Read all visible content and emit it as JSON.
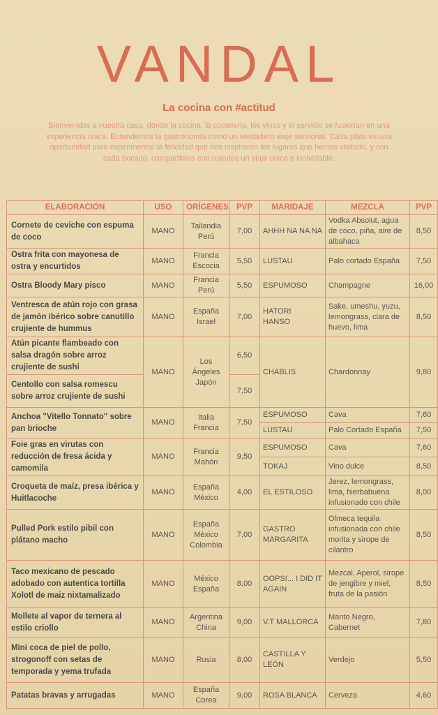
{
  "header": {
    "logo": "VANDAL",
    "tagline": "La cocina con #actitud",
    "intro": "Bienvenidos a nuestra casa, donde la cocina, la coctelería, los vinos y el servicio se fusionan en una experiencia única. Entendemos la gastronomía como un verdadero viaje sensorial. Cada plato es una oportunidad para experimentar la felicidad que nos inspiraron los lugares que hemos visitado, y con cada bocado, compartimos con ustedes un viaje único e inolvidable."
  },
  "colors": {
    "accent": "#d86c55",
    "background": "#ead9b2",
    "border": "#d9937a"
  },
  "table": {
    "columns": [
      "ELABORACIÓN",
      "USO",
      "ORÍGENES",
      "PVP",
      "MARIDAJE",
      "MEZCLA",
      "PVP"
    ],
    "rows": [
      [
        {
          "col": "dish",
          "text": "Cornete de ceviche con espuma de coco"
        },
        {
          "col": "uso",
          "text": "MANO"
        },
        {
          "col": "orig",
          "text": "Tailandia\nPerú"
        },
        {
          "col": "pvp",
          "text": "7,00"
        },
        {
          "col": "mar",
          "text": "AHHH NA NA NA"
        },
        {
          "col": "mez",
          "text": "Vodka Absolut, agua de coco, piña, aire de albahaca"
        },
        {
          "col": "pvp2",
          "text": "8,50"
        }
      ],
      [
        {
          "col": "dish",
          "text": "Ostra frita con mayonesa de ostra y encurtidos"
        },
        {
          "col": "uso",
          "text": "MANO"
        },
        {
          "col": "orig",
          "text": "Francia\nEscocia"
        },
        {
          "col": "pvp",
          "text": "5,50"
        },
        {
          "col": "mar",
          "text": "LUSTAU"
        },
        {
          "col": "mez",
          "text": "Palo cortado España"
        },
        {
          "col": "pvp2",
          "text": "7,50"
        }
      ],
      [
        {
          "col": "dish",
          "text": "Ostra Bloody Mary pisco"
        },
        {
          "col": "uso",
          "text": "MANO"
        },
        {
          "col": "orig",
          "text": "Francia\nPerú"
        },
        {
          "col": "pvp",
          "text": "5,50"
        },
        {
          "col": "mar",
          "text": "ESPUMOSO"
        },
        {
          "col": "mez",
          "text": "Champagne"
        },
        {
          "col": "pvp2",
          "text": "16,00"
        }
      ],
      [
        {
          "col": "dish",
          "text": "Ventresca de atún rojo con grasa de jamón ibérico sobre canutillo crujiente de hummus"
        },
        {
          "col": "uso",
          "text": "MANO"
        },
        {
          "col": "orig",
          "text": "España\nIsrael"
        },
        {
          "col": "pvp",
          "text": "7,00"
        },
        {
          "col": "mar",
          "text": "HATORI\nHANSO"
        },
        {
          "col": "mez",
          "text": "Sake, umeshu, yuzu, lemongrass, clara de huevo, lima"
        },
        {
          "col": "pvp2",
          "text": "8,50"
        }
      ],
      [
        {
          "col": "dish",
          "text": "Atún picante flambeado con salsa dragón sobre arroz crujiente de sushi"
        },
        {
          "col": "uso",
          "text": "MANO",
          "span": 2
        },
        {
          "col": "orig",
          "text": "Los Ángeles\nJapón",
          "span": 2
        },
        {
          "col": "pvp",
          "text": "6,50"
        },
        {
          "col": "mar",
          "text": "CHABLIS",
          "span": 2
        },
        {
          "col": "mez",
          "text": "Chardonnay",
          "span": 2
        },
        {
          "col": "pvp2",
          "text": "9,80",
          "span": 2
        }
      ],
      [
        {
          "col": "dish",
          "text": "Centollo con salsa romescu sobre arroz crujiente de sushi"
        },
        {
          "col": "pvp",
          "text": "7,50"
        }
      ],
      [
        {
          "col": "dish",
          "text": "Anchoa \"Vitello Tonnato\" sobre pan brioche",
          "span": 2
        },
        {
          "col": "uso",
          "text": "MANO",
          "span": 2
        },
        {
          "col": "orig",
          "text": "Italia\nFrancia",
          "span": 2
        },
        {
          "col": "pvp",
          "text": "7,50",
          "span": 2
        },
        {
          "col": "mar",
          "text": "ESPUMOSO"
        },
        {
          "col": "mez",
          "text": "Cava"
        },
        {
          "col": "pvp2",
          "text": "7,60"
        }
      ],
      [
        {
          "col": "mar",
          "text": "LUSTAU"
        },
        {
          "col": "mez",
          "text": "Palo Cortado España"
        },
        {
          "col": "pvp2",
          "text": "7,50"
        }
      ],
      [
        {
          "col": "dish",
          "text": "Foie gras en virutas con reducción de fresa ácida y camomila",
          "span": 2
        },
        {
          "col": "uso",
          "text": "MANO",
          "span": 2
        },
        {
          "col": "orig",
          "text": "Francia\nMahón",
          "span": 2
        },
        {
          "col": "pvp",
          "text": "9,50",
          "span": 2
        },
        {
          "col": "mar",
          "text": "ESPUMOSO"
        },
        {
          "col": "mez",
          "text": "Cava"
        },
        {
          "col": "pvp2",
          "text": "7,60"
        }
      ],
      [
        {
          "col": "mar",
          "text": "TOKAJ"
        },
        {
          "col": "mez",
          "text": "Vino dulce"
        },
        {
          "col": "pvp2",
          "text": "8,50"
        }
      ],
      [
        {
          "col": "dish",
          "text": "Croqueta de maíz, presa ibérica y Huitlacoche"
        },
        {
          "col": "uso",
          "text": "MANO"
        },
        {
          "col": "orig",
          "text": "España\nMéxico"
        },
        {
          "col": "pvp",
          "text": "4,00"
        },
        {
          "col": "mar",
          "text": "EL ESTILOSO"
        },
        {
          "col": "mez",
          "text": "Jerez, lemongrass, lima, hierbabuena infusionado con chile"
        },
        {
          "col": "pvp2",
          "text": "8,00"
        }
      ],
      [
        {
          "col": "dish",
          "text": "Pulled Pork estilo pibil con plátano macho"
        },
        {
          "col": "uso",
          "text": "MANO"
        },
        {
          "col": "orig",
          "text": "España\nMéxico\nColombia"
        },
        {
          "col": "pvp",
          "text": "7,00"
        },
        {
          "col": "mar",
          "text": "GASTRO\nMARGARITA"
        },
        {
          "col": "mez",
          "text": "Olmeca tequila infusionada con chile morita y sirope de cilantro"
        },
        {
          "col": "pvp2",
          "text": "8,50"
        }
      ],
      [
        {
          "col": "dish",
          "text": "Taco mexicano de pescado adobado con autentica tortilla Xolotl de maiz nixtamalizado"
        },
        {
          "col": "uso",
          "text": "MANO"
        },
        {
          "col": "orig",
          "text": "México\nEspaña"
        },
        {
          "col": "pvp",
          "text": "8,00"
        },
        {
          "col": "mar",
          "text": "OOPS!... I DID IT AGAIN"
        },
        {
          "col": "mez",
          "text": "Mezcal, Aperol, sirope de jengibre y miel, fruta de la pasión"
        },
        {
          "col": "pvp2",
          "text": "8,50"
        }
      ],
      [
        {
          "col": "dish",
          "text": "Mollete al vapor de ternera al estilo criollo"
        },
        {
          "col": "uso",
          "text": "MANO"
        },
        {
          "col": "orig",
          "text": "Argentina\nChina"
        },
        {
          "col": "pvp",
          "text": "9,00"
        },
        {
          "col": "mar",
          "text": "V.T MALLORCA"
        },
        {
          "col": "mez",
          "text": "Manto Negro, Cabernet"
        },
        {
          "col": "pvp2",
          "text": "7,80"
        }
      ],
      [
        {
          "col": "dish",
          "text": "Mini coca de piel de pollo, strogonoff con setas de temporada y yema trufada"
        },
        {
          "col": "uso",
          "text": "MANO"
        },
        {
          "col": "orig",
          "text": "Rusia"
        },
        {
          "col": "pvp",
          "text": "8,00"
        },
        {
          "col": "mar",
          "text": "CASTILLA Y LEÓN"
        },
        {
          "col": "mez",
          "text": "Verdejo"
        },
        {
          "col": "pvp2",
          "text": "5,50"
        }
      ],
      [
        {
          "col": "dish",
          "text": "Patatas bravas y arrugadas"
        },
        {
          "col": "uso",
          "text": "MANO"
        },
        {
          "col": "orig",
          "text": "España\nCorea"
        },
        {
          "col": "pvp",
          "text": "9,00"
        },
        {
          "col": "mar",
          "text": "ROSA BLANCA"
        },
        {
          "col": "mez",
          "text": "Cerveza"
        },
        {
          "col": "pvp2",
          "text": "4,60"
        }
      ]
    ]
  }
}
